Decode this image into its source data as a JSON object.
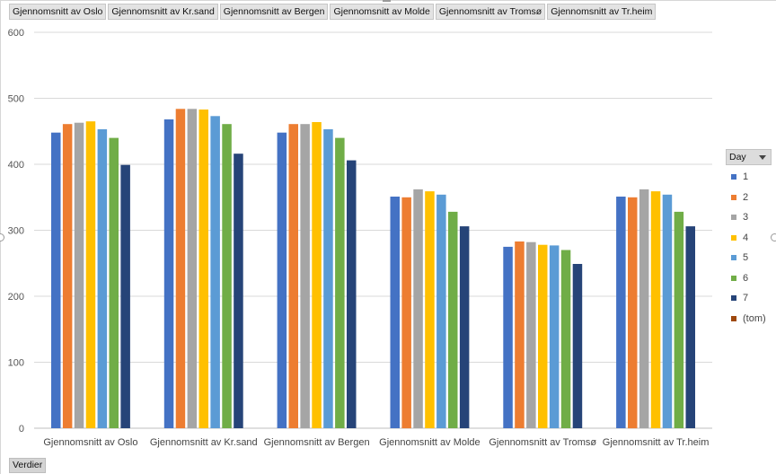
{
  "field_buttons": [
    "Gjennomsnitt av Oslo",
    "Gjennomsnitt av Kr.sand",
    "Gjennomsnitt av Bergen",
    "Gjennomsnitt av Molde",
    "Gjennomsnitt av Tromsø",
    "Gjennomsnitt av Tr.heim"
  ],
  "values_button": "Verdier",
  "legend": {
    "title": "Day",
    "items": [
      {
        "label": "1",
        "color": "#4472c4"
      },
      {
        "label": "2",
        "color": "#ed7d31"
      },
      {
        "label": "3",
        "color": "#a5a5a5"
      },
      {
        "label": "4",
        "color": "#ffc000"
      },
      {
        "label": "5",
        "color": "#5b9bd5"
      },
      {
        "label": "6",
        "color": "#70ad47"
      },
      {
        "label": "7",
        "color": "#264478"
      },
      {
        "label": "(tom)",
        "color": "#9e480e"
      }
    ]
  },
  "chart_data": {
    "type": "bar",
    "title": "",
    "xlabel": "",
    "ylabel": "",
    "ylim": [
      0,
      600
    ],
    "yticks": [
      0,
      100,
      200,
      300,
      400,
      500,
      600
    ],
    "grid": true,
    "legend_position": "right",
    "categories": [
      "Gjennomsnitt av Oslo",
      "Gjennomsnitt av Kr.sand",
      "Gjennomsnitt av Bergen",
      "Gjennomsnitt av Molde",
      "Gjennomsnitt av Tromsø",
      "Gjennomsnitt av Tr.heim"
    ],
    "series": [
      {
        "name": "1",
        "color": "#4472c4",
        "values": [
          448,
          468,
          448,
          351,
          275,
          351
        ]
      },
      {
        "name": "2",
        "color": "#ed7d31",
        "values": [
          461,
          484,
          461,
          350,
          283,
          350
        ]
      },
      {
        "name": "3",
        "color": "#a5a5a5",
        "values": [
          463,
          484,
          461,
          362,
          282,
          362
        ]
      },
      {
        "name": "4",
        "color": "#ffc000",
        "values": [
          465,
          483,
          464,
          359,
          278,
          359
        ]
      },
      {
        "name": "5",
        "color": "#5b9bd5",
        "values": [
          453,
          473,
          453,
          354,
          277,
          354
        ]
      },
      {
        "name": "6",
        "color": "#70ad47",
        "values": [
          440,
          461,
          440,
          328,
          270,
          328
        ]
      },
      {
        "name": "7",
        "color": "#264478",
        "values": [
          399,
          416,
          406,
          306,
          249,
          306
        ]
      }
    ]
  }
}
